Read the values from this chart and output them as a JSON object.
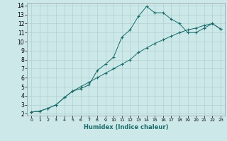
{
  "xlabel": "Humidex (Indice chaleur)",
  "ylabel": "",
  "bg_color": "#cce8e8",
  "line_color": "#1a6b6b",
  "grid_color": "#b0d0d0",
  "xlim": [
    -0.5,
    23.5
  ],
  "ylim": [
    1.8,
    14.3
  ],
  "xticks": [
    0,
    1,
    2,
    3,
    4,
    5,
    6,
    7,
    8,
    9,
    10,
    11,
    12,
    13,
    14,
    15,
    16,
    17,
    18,
    19,
    20,
    21,
    22,
    23
  ],
  "yticks": [
    2,
    3,
    4,
    5,
    6,
    7,
    8,
    9,
    10,
    11,
    12,
    13,
    14
  ],
  "line1_x": [
    0,
    1,
    2,
    3,
    4,
    5,
    6,
    7,
    8,
    9,
    10,
    11,
    12,
    13,
    14,
    15,
    16,
    17,
    18,
    19,
    20,
    21,
    22,
    23
  ],
  "line1_y": [
    2.2,
    2.3,
    2.6,
    3.0,
    3.8,
    4.5,
    4.8,
    5.2,
    6.8,
    7.5,
    8.3,
    10.5,
    11.3,
    12.8,
    13.9,
    13.2,
    13.2,
    12.5,
    12.0,
    11.0,
    11.0,
    11.5,
    12.0,
    11.4
  ],
  "line2_x": [
    0,
    1,
    2,
    3,
    4,
    5,
    6,
    7,
    8,
    9,
    10,
    11,
    12,
    13,
    14,
    15,
    16,
    17,
    18,
    19,
    20,
    21,
    22,
    23
  ],
  "line2_y": [
    2.2,
    2.3,
    2.6,
    3.0,
    3.8,
    4.5,
    5.0,
    5.5,
    6.0,
    6.5,
    7.0,
    7.5,
    8.0,
    8.8,
    9.3,
    9.8,
    10.2,
    10.6,
    11.0,
    11.3,
    11.5,
    11.8,
    12.0,
    11.4
  ],
  "xlabel_fontsize": 6.0,
  "tick_fontsize_x": 4.5,
  "tick_fontsize_y": 5.5,
  "linewidth": 0.7,
  "markersize": 3.0,
  "markeredgewidth": 0.8
}
